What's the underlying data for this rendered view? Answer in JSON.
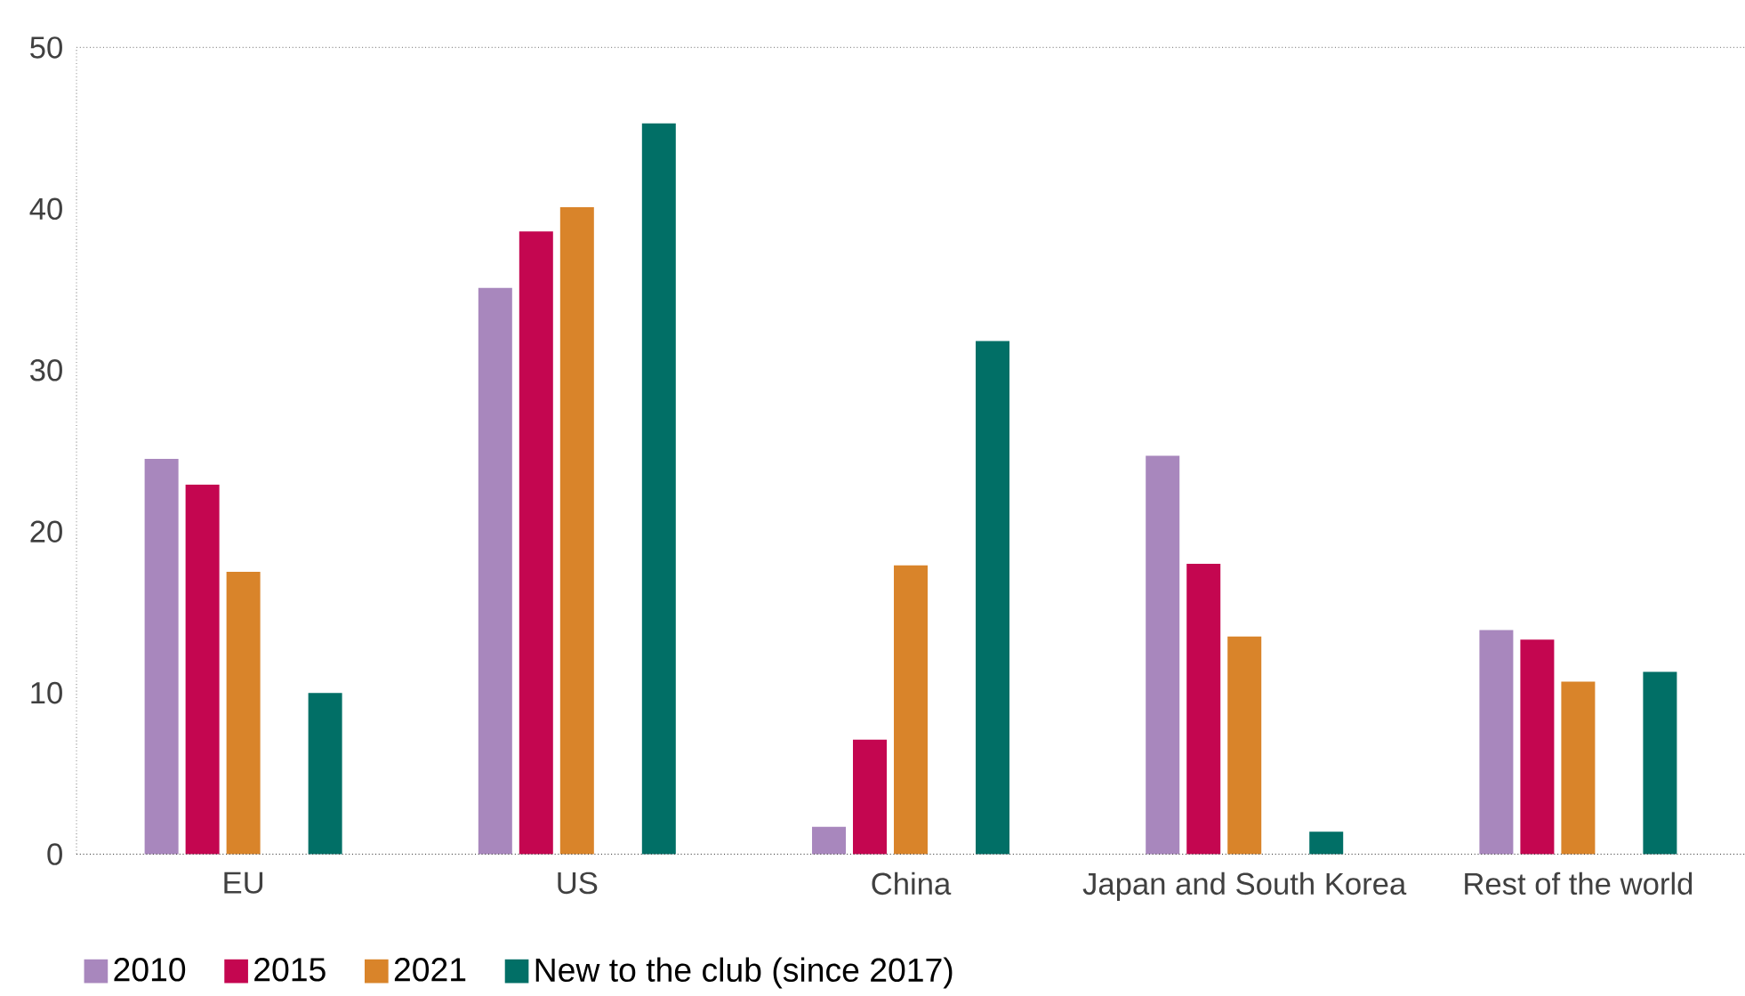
{
  "chart_data": {
    "type": "bar",
    "categories": [
      "EU",
      "US",
      "China",
      "Japan and South Korea",
      "Rest of the world"
    ],
    "series": [
      {
        "name": "2010",
        "color": "#a887bd",
        "values": [
          24.5,
          35.1,
          1.7,
          24.7,
          13.9
        ]
      },
      {
        "name": "2015",
        "color": "#c40650",
        "values": [
          22.9,
          38.6,
          7.1,
          18.0,
          13.3
        ]
      },
      {
        "name": "2021",
        "color": "#d9842a",
        "values": [
          17.5,
          40.1,
          17.9,
          13.5,
          10.7
        ]
      },
      {
        "name": "New to the club (since 2017)",
        "color": "#016f66",
        "values": [
          10.0,
          45.3,
          31.8,
          1.4,
          11.3
        ]
      }
    ],
    "ylim": [
      0,
      50
    ],
    "yticks": [
      0,
      10,
      20,
      30,
      40,
      50
    ],
    "legend": "bottom left"
  }
}
